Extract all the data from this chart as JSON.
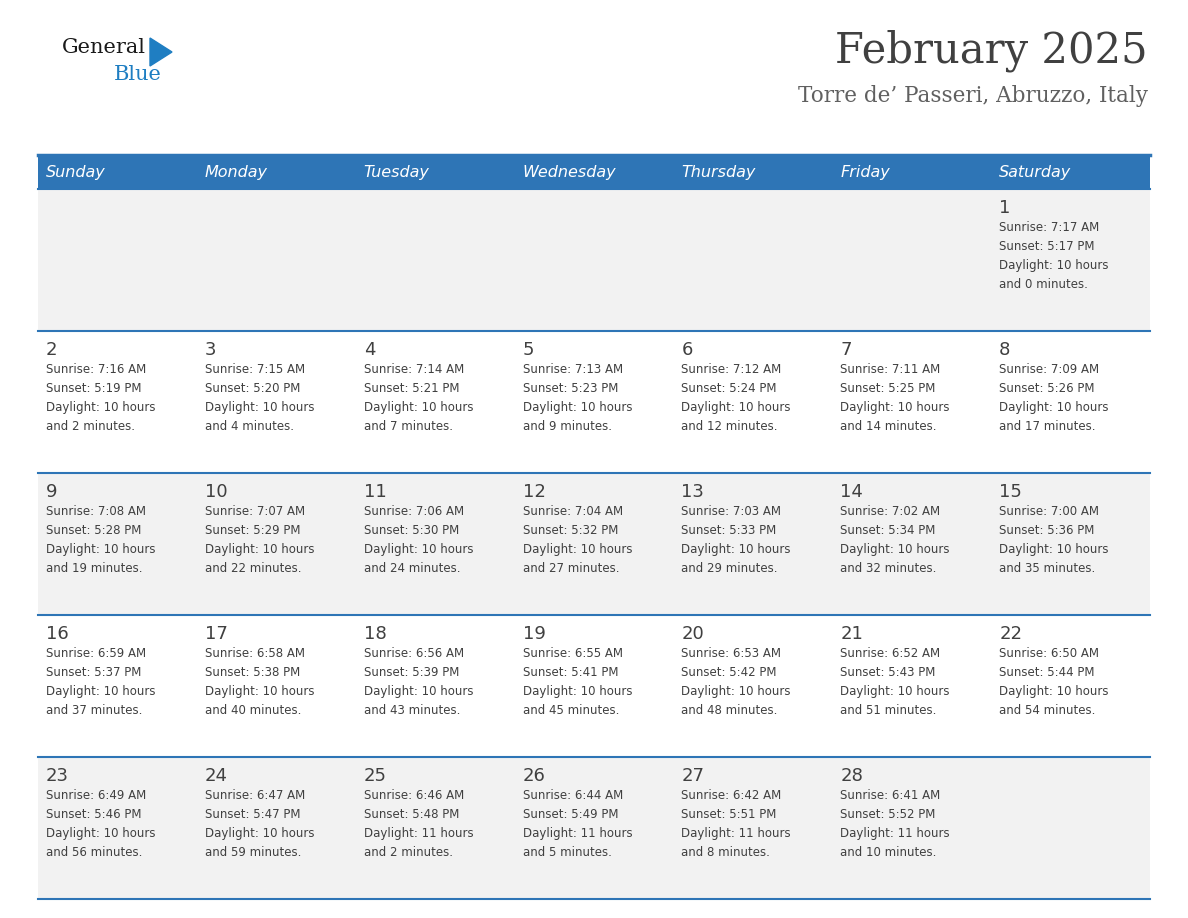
{
  "title": "February 2025",
  "subtitle": "Torre de’ Passeri, Abruzzo, Italy",
  "days_of_week": [
    "Sunday",
    "Monday",
    "Tuesday",
    "Wednesday",
    "Thursday",
    "Friday",
    "Saturday"
  ],
  "header_bg": "#2E75B6",
  "header_text_color": "#FFFFFF",
  "row_bg_light": "#F2F2F2",
  "row_bg_white": "#FFFFFF",
  "separator_color": "#2E75B6",
  "title_color": "#404040",
  "subtitle_color": "#606060",
  "day_number_color": "#404040",
  "cell_text_color": "#404040",
  "logo_general_color": "#1A1A1A",
  "logo_blue_color": "#1F7EC2",
  "calendar_data": [
    [
      null,
      null,
      null,
      null,
      null,
      null,
      {
        "day": 1,
        "sunrise": "7:17 AM",
        "sunset": "5:17 PM",
        "daylight_hours": 10,
        "daylight_minutes": 0
      }
    ],
    [
      {
        "day": 2,
        "sunrise": "7:16 AM",
        "sunset": "5:19 PM",
        "daylight_hours": 10,
        "daylight_minutes": 2
      },
      {
        "day": 3,
        "sunrise": "7:15 AM",
        "sunset": "5:20 PM",
        "daylight_hours": 10,
        "daylight_minutes": 4
      },
      {
        "day": 4,
        "sunrise": "7:14 AM",
        "sunset": "5:21 PM",
        "daylight_hours": 10,
        "daylight_minutes": 7
      },
      {
        "day": 5,
        "sunrise": "7:13 AM",
        "sunset": "5:23 PM",
        "daylight_hours": 10,
        "daylight_minutes": 9
      },
      {
        "day": 6,
        "sunrise": "7:12 AM",
        "sunset": "5:24 PM",
        "daylight_hours": 10,
        "daylight_minutes": 12
      },
      {
        "day": 7,
        "sunrise": "7:11 AM",
        "sunset": "5:25 PM",
        "daylight_hours": 10,
        "daylight_minutes": 14
      },
      {
        "day": 8,
        "sunrise": "7:09 AM",
        "sunset": "5:26 PM",
        "daylight_hours": 10,
        "daylight_minutes": 17
      }
    ],
    [
      {
        "day": 9,
        "sunrise": "7:08 AM",
        "sunset": "5:28 PM",
        "daylight_hours": 10,
        "daylight_minutes": 19
      },
      {
        "day": 10,
        "sunrise": "7:07 AM",
        "sunset": "5:29 PM",
        "daylight_hours": 10,
        "daylight_minutes": 22
      },
      {
        "day": 11,
        "sunrise": "7:06 AM",
        "sunset": "5:30 PM",
        "daylight_hours": 10,
        "daylight_minutes": 24
      },
      {
        "day": 12,
        "sunrise": "7:04 AM",
        "sunset": "5:32 PM",
        "daylight_hours": 10,
        "daylight_minutes": 27
      },
      {
        "day": 13,
        "sunrise": "7:03 AM",
        "sunset": "5:33 PM",
        "daylight_hours": 10,
        "daylight_minutes": 29
      },
      {
        "day": 14,
        "sunrise": "7:02 AM",
        "sunset": "5:34 PM",
        "daylight_hours": 10,
        "daylight_minutes": 32
      },
      {
        "day": 15,
        "sunrise": "7:00 AM",
        "sunset": "5:36 PM",
        "daylight_hours": 10,
        "daylight_minutes": 35
      }
    ],
    [
      {
        "day": 16,
        "sunrise": "6:59 AM",
        "sunset": "5:37 PM",
        "daylight_hours": 10,
        "daylight_minutes": 37
      },
      {
        "day": 17,
        "sunrise": "6:58 AM",
        "sunset": "5:38 PM",
        "daylight_hours": 10,
        "daylight_minutes": 40
      },
      {
        "day": 18,
        "sunrise": "6:56 AM",
        "sunset": "5:39 PM",
        "daylight_hours": 10,
        "daylight_minutes": 43
      },
      {
        "day": 19,
        "sunrise": "6:55 AM",
        "sunset": "5:41 PM",
        "daylight_hours": 10,
        "daylight_minutes": 45
      },
      {
        "day": 20,
        "sunrise": "6:53 AM",
        "sunset": "5:42 PM",
        "daylight_hours": 10,
        "daylight_minutes": 48
      },
      {
        "day": 21,
        "sunrise": "6:52 AM",
        "sunset": "5:43 PM",
        "daylight_hours": 10,
        "daylight_minutes": 51
      },
      {
        "day": 22,
        "sunrise": "6:50 AM",
        "sunset": "5:44 PM",
        "daylight_hours": 10,
        "daylight_minutes": 54
      }
    ],
    [
      {
        "day": 23,
        "sunrise": "6:49 AM",
        "sunset": "5:46 PM",
        "daylight_hours": 10,
        "daylight_minutes": 56
      },
      {
        "day": 24,
        "sunrise": "6:47 AM",
        "sunset": "5:47 PM",
        "daylight_hours": 10,
        "daylight_minutes": 59
      },
      {
        "day": 25,
        "sunrise": "6:46 AM",
        "sunset": "5:48 PM",
        "daylight_hours": 11,
        "daylight_minutes": 2
      },
      {
        "day": 26,
        "sunrise": "6:44 AM",
        "sunset": "5:49 PM",
        "daylight_hours": 11,
        "daylight_minutes": 5
      },
      {
        "day": 27,
        "sunrise": "6:42 AM",
        "sunset": "5:51 PM",
        "daylight_hours": 11,
        "daylight_minutes": 8
      },
      {
        "day": 28,
        "sunrise": "6:41 AM",
        "sunset": "5:52 PM",
        "daylight_hours": 11,
        "daylight_minutes": 10
      },
      null
    ]
  ]
}
